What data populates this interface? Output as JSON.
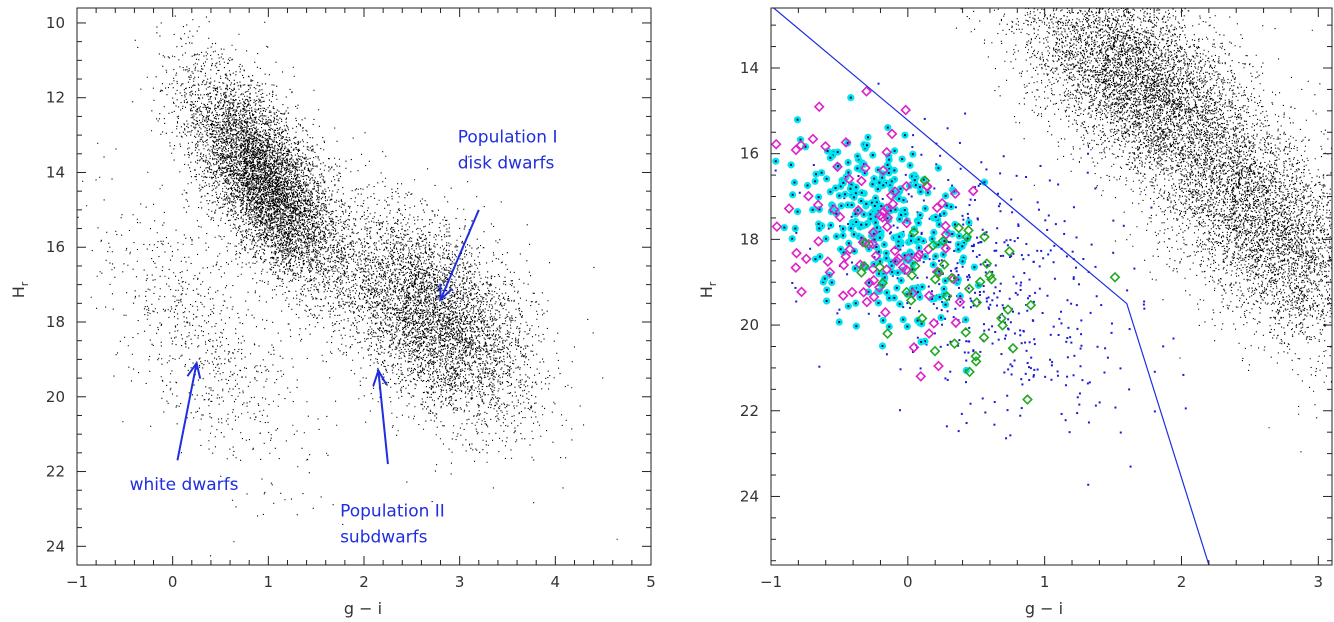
{
  "colors": {
    "ink": "#000000",
    "annotation": "#1f2ee0",
    "cyan": "#00e5ee",
    "magenta": "#e020c8",
    "green": "#22a822",
    "blue_points": "#1a1ad8"
  },
  "chart_data": [
    {
      "type": "scatter",
      "xlabel": "g − i",
      "ylabel": "H",
      "ylabel_sub": "r",
      "xlim": [
        -1,
        5
      ],
      "ylim": [
        24.5,
        9.6
      ],
      "y_inverted": true,
      "x_ticks": [
        -1,
        0,
        1,
        2,
        3,
        4,
        5
      ],
      "y_ticks": [
        10,
        12,
        14,
        16,
        18,
        20,
        22,
        24
      ],
      "series": [
        {
          "kind": "density",
          "color": "#000000",
          "clusters": [
            {
              "x": 0.95,
              "y": 14.2,
              "sx": 0.3,
              "sy": 1.4,
              "weight": 0.35
            },
            {
              "x": 2.7,
              "y": 17.8,
              "sx": 0.45,
              "sy": 1.4,
              "weight": 0.65
            },
            {
              "x": 0.3,
              "y": 18.5,
              "sx": 0.4,
              "sy": 1.8,
              "weight": 0.03
            }
          ]
        }
      ],
      "annotations": [
        {
          "lines": [
            "Population I",
            "disk dwarfs"
          ],
          "text_x": 2.98,
          "text_y": 13.2,
          "arrow_from": [
            3.2,
            15.0
          ],
          "arrow_to": [
            2.8,
            17.4
          ]
        },
        {
          "lines": [
            "white dwarfs"
          ],
          "text_x": -0.45,
          "text_y": 22.5,
          "arrow_from": [
            0.05,
            21.7
          ],
          "arrow_to": [
            0.25,
            19.1
          ]
        },
        {
          "lines": [
            "Population II",
            "subdwarfs"
          ],
          "text_x": 1.75,
          "text_y": 23.2,
          "arrow_from": [
            2.25,
            21.8
          ],
          "arrow_to": [
            2.15,
            19.3
          ]
        }
      ]
    },
    {
      "type": "scatter",
      "xlabel": "g − i",
      "ylabel": "H",
      "ylabel_sub": "r",
      "xlim": [
        -1,
        3.1
      ],
      "ylim": [
        25.6,
        12.6
      ],
      "y_inverted": true,
      "x_ticks": [
        -1,
        0,
        1,
        2,
        3
      ],
      "y_ticks": [
        14,
        16,
        18,
        20,
        22,
        24
      ],
      "cut_line": [
        [
          -0.98,
          12.6
        ],
        [
          1.6,
          19.5
        ],
        [
          2.2,
          25.6
        ]
      ],
      "series": [
        {
          "kind": "density",
          "color": "#000000",
          "clusters": [
            {
              "x": 1.65,
              "y": 14.2,
              "sx": 0.35,
              "sy": 1.2,
              "weight": 0.35
            },
            {
              "x": 2.6,
              "y": 17.6,
              "sx": 0.35,
              "sy": 1.5,
              "weight": 0.65
            }
          ]
        },
        {
          "name": "blue points",
          "kind": "scatter",
          "color": "#1a1ad8",
          "center": [
            0.5,
            19.0
          ],
          "spread": [
            0.55,
            1.4
          ]
        },
        {
          "name": "cyan markers",
          "kind": "scatter",
          "color": "#00e5ee",
          "center": [
            -0.15,
            17.8
          ],
          "spread": [
            0.3,
            1.1
          ]
        },
        {
          "name": "magenta markers",
          "kind": "scatter",
          "color": "#e020c8",
          "center": [
            -0.2,
            17.8
          ],
          "spread": [
            0.35,
            1.3
          ]
        },
        {
          "name": "green markers",
          "kind": "scatter",
          "color": "#22a822",
          "center": [
            0.3,
            18.9
          ],
          "spread": [
            0.4,
            1.0
          ]
        }
      ]
    }
  ]
}
